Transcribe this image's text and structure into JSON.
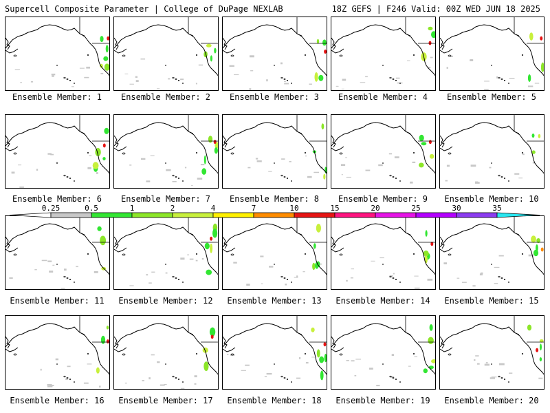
{
  "header": {
    "left": "Supercell Composite Parameter | College of DuPage NEXLAB",
    "right": "18Z GEFS | F246 Valid: 00Z WED JUN 18 2025"
  },
  "legend": {
    "levels": [
      "0.25",
      "0.5",
      "1",
      "2",
      "4",
      "7",
      "10",
      "15",
      "20",
      "25",
      "30",
      "35"
    ],
    "colors": [
      "#c8c8c8",
      "#32e632",
      "#8ce628",
      "#c8f03c",
      "#fff000",
      "#ff8c00",
      "#e61414",
      "#ff1480",
      "#e614e6",
      "#b400ff",
      "#8c3cf0",
      "#c878e6",
      "#28e6f0"
    ]
  },
  "members": [
    {
      "label": "Ensemble Member: 1"
    },
    {
      "label": "Ensemble Member: 2"
    },
    {
      "label": "Ensemble Member: 3"
    },
    {
      "label": "Ensemble Member: 4"
    },
    {
      "label": "Ensemble Member: 5"
    },
    {
      "label": "Ensemble Member: 6"
    },
    {
      "label": "Ensemble Member: 7"
    },
    {
      "label": "Ensemble Member: 8"
    },
    {
      "label": "Ensemble Member: 9"
    },
    {
      "label": "Ensemble Member: 10"
    },
    {
      "label": "Ensemble Member: 11"
    },
    {
      "label": "Ensemble Member: 12"
    },
    {
      "label": "Ensemble Member: 13"
    },
    {
      "label": "Ensemble Member: 14"
    },
    {
      "label": "Ensemble Member: 15"
    },
    {
      "label": "Ensemble Member: 16"
    },
    {
      "label": "Ensemble Member: 17"
    },
    {
      "label": "Ensemble Member: 18"
    },
    {
      "label": "Ensemble Member: 19"
    },
    {
      "label": "Ensemble Member: 20"
    }
  ]
}
